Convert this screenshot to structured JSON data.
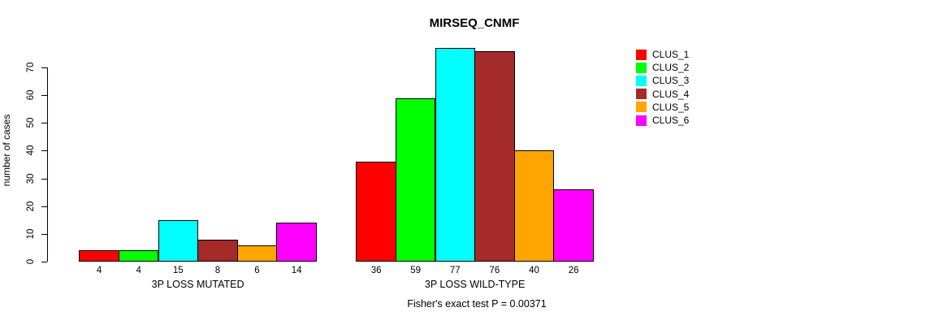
{
  "chart_data": {
    "type": "bar",
    "title": "MIRSEQ_CNMF",
    "ylabel": "number of cases",
    "ylim": [
      0,
      70
    ],
    "yticks": [
      0,
      10,
      20,
      30,
      40,
      50,
      60,
      70
    ],
    "grid": false,
    "legend_position": "right",
    "bar_border_color": "#000000",
    "clusters": [
      {
        "name": "CLUS_1",
        "color": "#FF0000"
      },
      {
        "name": "CLUS_2",
        "color": "#00FF00"
      },
      {
        "name": "CLUS_3",
        "color": "#00FFFF"
      },
      {
        "name": "CLUS_4",
        "color": "#A52A2A"
      },
      {
        "name": "CLUS_5",
        "color": "#FFA500"
      },
      {
        "name": "CLUS_6",
        "color": "#FF00FF"
      }
    ],
    "groups": [
      {
        "label": "3P LOSS MUTATED",
        "values": [
          4,
          4,
          15,
          8,
          6,
          14
        ]
      },
      {
        "label": "3P LOSS WILD-TYPE",
        "values": [
          36,
          59,
          77,
          76,
          40,
          26
        ]
      }
    ],
    "series": [
      {
        "name": "CLUS_1",
        "values": [
          4,
          36
        ]
      },
      {
        "name": "CLUS_2",
        "values": [
          4,
          59
        ]
      },
      {
        "name": "CLUS_3",
        "values": [
          15,
          77
        ]
      },
      {
        "name": "CLUS_4",
        "values": [
          8,
          76
        ]
      },
      {
        "name": "CLUS_5",
        "values": [
          6,
          40
        ]
      },
      {
        "name": "CLUS_6",
        "values": [
          14,
          26
        ]
      }
    ],
    "annotation": "Fisher's exact test P = 0.00371"
  }
}
